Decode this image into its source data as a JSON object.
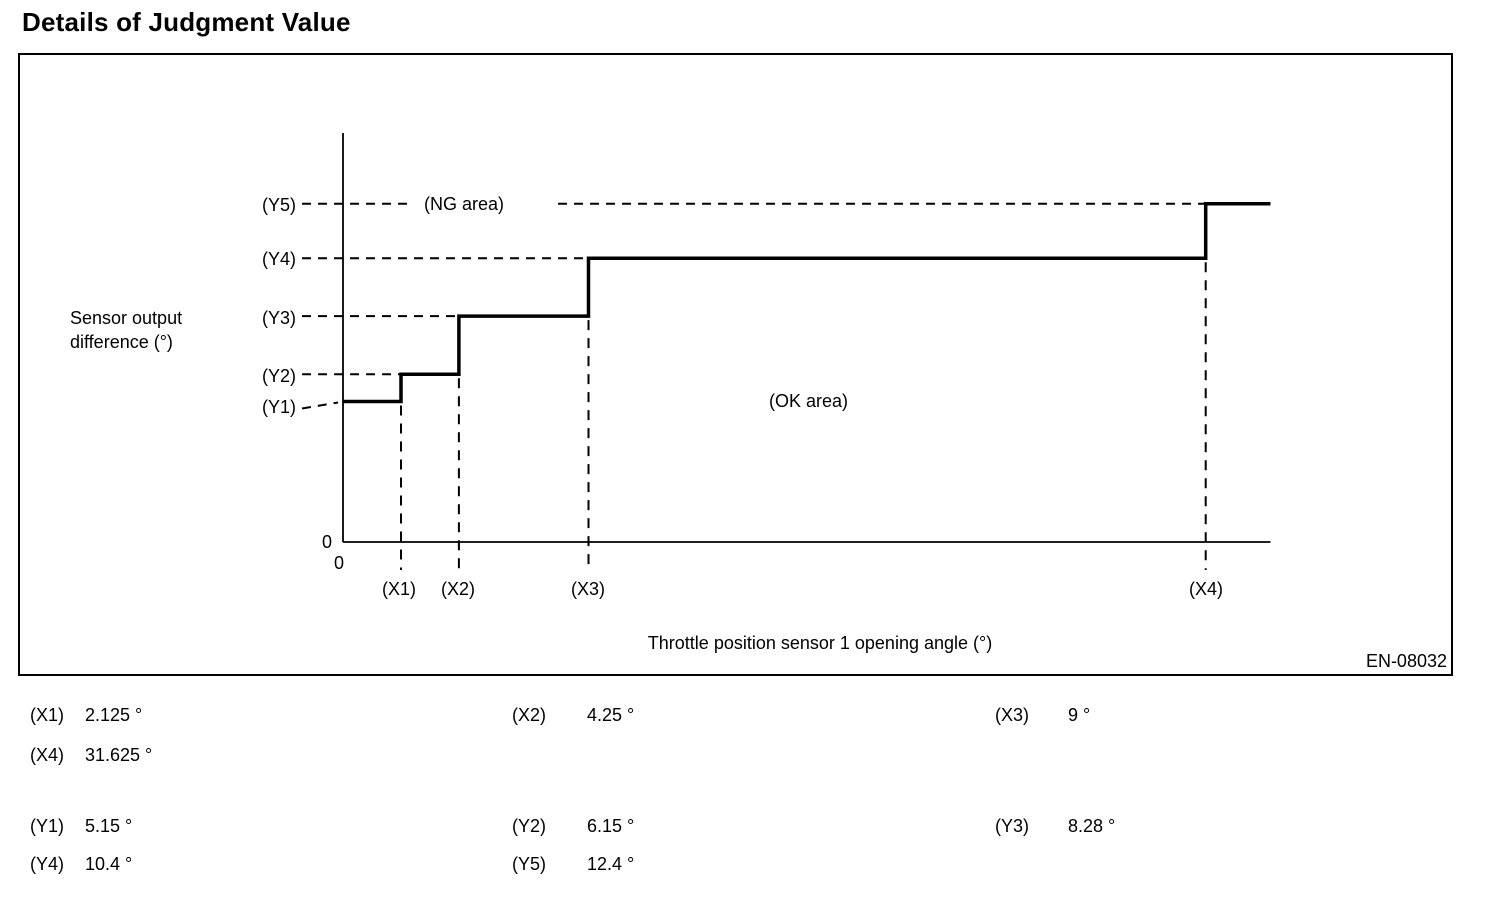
{
  "page_title": "Details of Judgment Value",
  "figure": {
    "y_axis_title": "Sensor output\ndifference (°)",
    "x_axis_title": "Throttle position sensor 1 opening angle (°)",
    "ng_area_label": "(NG area)",
    "ok_area_label": "(OK area)",
    "origin_zero_y": "0",
    "origin_zero_x": "0",
    "figure_code": "EN-08032",
    "y_markers": [
      "(Y5)",
      "(Y4)",
      "(Y3)",
      "(Y2)",
      "(Y1)"
    ],
    "x_markers": [
      "(X1)",
      "(X2)",
      "(X3)",
      "(X4)"
    ]
  },
  "chart_data": {
    "type": "line",
    "subtype": "step-threshold-boundary",
    "title": "Details of Judgment Value",
    "xlabel": "Throttle position sensor 1 opening angle (°)",
    "ylabel": "Sensor output difference (°)",
    "xlim": [
      0,
      34
    ],
    "ylim": [
      0,
      15
    ],
    "grid": false,
    "x_thresholds": {
      "X1": 2.125,
      "X2": 4.25,
      "X3": 9,
      "X4": 31.625
    },
    "y_thresholds": {
      "Y1": 5.15,
      "Y2": 6.15,
      "Y3": 8.28,
      "Y4": 10.4,
      "Y5": 12.4
    },
    "boundary_steps": [
      {
        "x_from": 0,
        "x_to": 2.125,
        "y": 5.15
      },
      {
        "x_from": 2.125,
        "x_to": 4.25,
        "y": 6.15
      },
      {
        "x_from": 4.25,
        "x_to": 9,
        "y": 8.28
      },
      {
        "x_from": 9,
        "x_to": 31.625,
        "y": 10.4
      },
      {
        "x_from": 31.625,
        "x_to": 34,
        "y": 12.4
      }
    ],
    "regions": {
      "above_boundary": "NG area",
      "below_boundary": "OK area"
    }
  },
  "value_table": {
    "x_rows": [
      [
        {
          "label": "(X1)",
          "value": "2.125 °"
        },
        {
          "label": "(X2)",
          "value": "4.25 °"
        },
        {
          "label": "(X3)",
          "value": "9 °"
        }
      ],
      [
        {
          "label": "(X4)",
          "value": "31.625 °"
        }
      ]
    ],
    "y_rows": [
      [
        {
          "label": "(Y1)",
          "value": "5.15 °"
        },
        {
          "label": "(Y2)",
          "value": "6.15 °"
        },
        {
          "label": "(Y3)",
          "value": "8.28 °"
        }
      ],
      [
        {
          "label": "(Y4)",
          "value": "10.4 °"
        },
        {
          "label": "(Y5)",
          "value": "12.4 °"
        }
      ]
    ]
  }
}
